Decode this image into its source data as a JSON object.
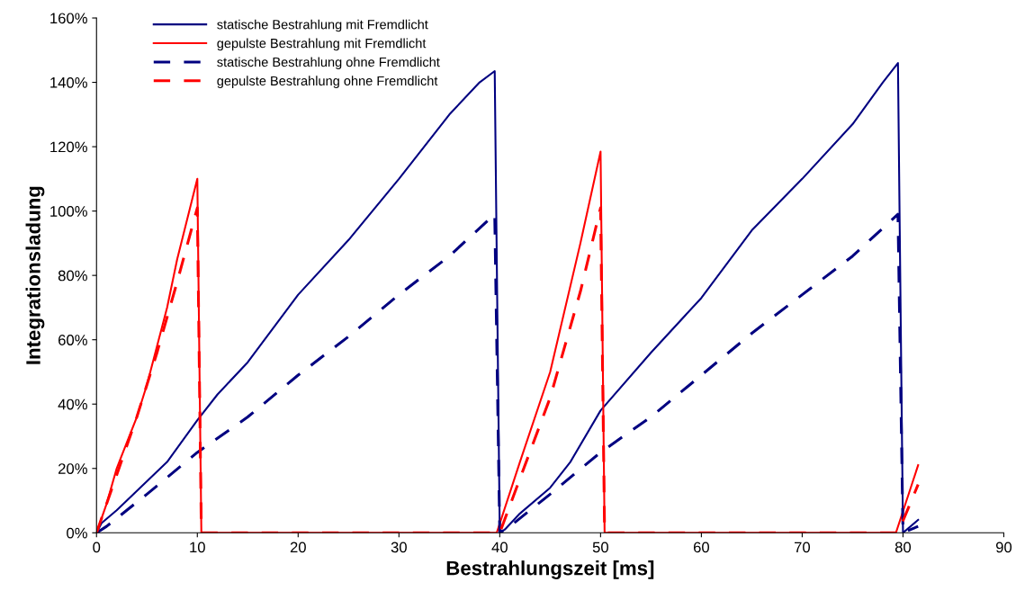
{
  "chart_data": {
    "type": "line",
    "xlabel": "Bestrahlungszeit [ms]",
    "ylabel": "Integrationsladung",
    "xlim": [
      0,
      90
    ],
    "xticks": [
      0,
      10,
      20,
      30,
      40,
      50,
      60,
      70,
      80,
      90
    ],
    "ylim": [
      0,
      160
    ],
    "yticks": [
      {
        "value": 0,
        "label": "0%"
      },
      {
        "value": 20,
        "label": "20%"
      },
      {
        "value": 40,
        "label": "40%"
      },
      {
        "value": 60,
        "label": "60%"
      },
      {
        "value": 80,
        "label": "80%"
      },
      {
        "value": 100,
        "label": "100%"
      },
      {
        "value": 120,
        "label": "120%"
      },
      {
        "value": 140,
        "label": "140%"
      },
      {
        "value": 160,
        "label": "160%"
      }
    ],
    "grid": false,
    "legend": "top left",
    "marker": "none",
    "series": [
      {
        "name": "statische Bestrahlung mit Fremdlicht",
        "color": "#000080",
        "line_style": "solid",
        "x": [
          0,
          0.5,
          2,
          3,
          5,
          7,
          10,
          12,
          15,
          20,
          25,
          30,
          35,
          38,
          39.5,
          40,
          40.5,
          42,
          45,
          47,
          50,
          55,
          60,
          65,
          70,
          75,
          78,
          79.5,
          80,
          81.5
        ],
        "values": [
          0,
          3,
          7,
          10,
          16,
          22,
          35,
          43,
          53,
          74,
          91,
          110,
          130,
          140,
          143.5,
          0,
          1,
          6,
          14,
          22,
          38,
          56,
          73,
          94,
          110,
          127,
          140,
          146,
          0,
          4
        ]
      },
      {
        "name": "gepulste Bestrahlung mit Fremdlicht",
        "color": "#ff0000",
        "line_style": "solid",
        "x": [
          0,
          1,
          2,
          3,
          4,
          5,
          7,
          8,
          10,
          10.4,
          39.7,
          42,
          45,
          48,
          50,
          50.4,
          79.3,
          81.5
        ],
        "values": [
          0,
          9,
          20,
          28,
          36,
          46,
          70,
          85,
          110,
          0,
          0,
          22,
          50,
          90,
          118.5,
          0,
          0,
          21
        ]
      },
      {
        "name": "statische Bestrahlung ohne Fremdlicht",
        "color": "#000080",
        "line_style": "dashed",
        "x": [
          0,
          1,
          3,
          5,
          10,
          15,
          20,
          25,
          30,
          35,
          39.5,
          40,
          41,
          45,
          50,
          55,
          60,
          65,
          70,
          75,
          79.5,
          80,
          81.5
        ],
        "values": [
          0,
          2,
          7,
          12,
          25,
          36,
          49,
          61,
          74,
          86,
          99,
          0,
          2,
          12,
          25,
          36,
          49,
          62,
          74,
          86,
          99,
          0,
          2
        ]
      },
      {
        "name": "gepulste Bestrahlung ohne Fremdlicht",
        "color": "#ff0000",
        "line_style": "dashed",
        "x": [
          0,
          2,
          4,
          6,
          8,
          10,
          10.4,
          40,
          45,
          48,
          50,
          50.4,
          79.5,
          81.5
        ],
        "values": [
          0,
          18,
          36,
          56,
          78,
          101,
          0,
          0,
          42,
          75,
          101,
          0,
          0,
          15
        ]
      }
    ]
  }
}
